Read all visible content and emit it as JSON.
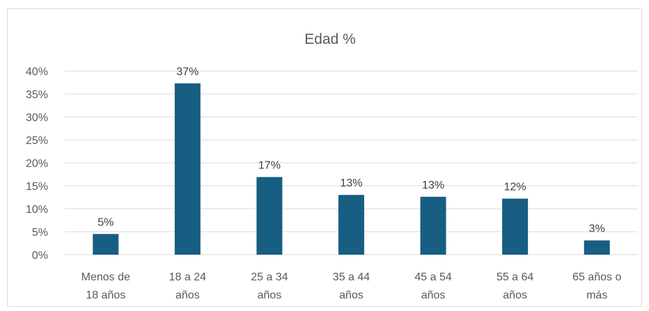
{
  "chart_data": {
    "type": "bar",
    "title": "Edad %",
    "categories": [
      [
        "Menos de",
        "18 años"
      ],
      [
        "18 a 24",
        "años"
      ],
      [
        "25 a 34",
        "años"
      ],
      [
        "35 a 44",
        "años"
      ],
      [
        "45 a 54",
        "años"
      ],
      [
        "55 a 64",
        "años"
      ],
      [
        "65 años o",
        "más"
      ]
    ],
    "values": [
      4.5,
      37.3,
      16.9,
      13.0,
      12.6,
      12.2,
      3.1
    ],
    "data_labels": [
      "5%",
      "37%",
      "17%",
      "13%",
      "13%",
      "12%",
      "3%"
    ],
    "y_ticks": [
      "0%",
      "5%",
      "10%",
      "15%",
      "20%",
      "25%",
      "30%",
      "35%",
      "40%"
    ],
    "ylim": [
      0,
      40
    ],
    "xlabel": "",
    "ylabel": "",
    "grid": true,
    "legend": "none",
    "bar_color": "#175e82"
  }
}
